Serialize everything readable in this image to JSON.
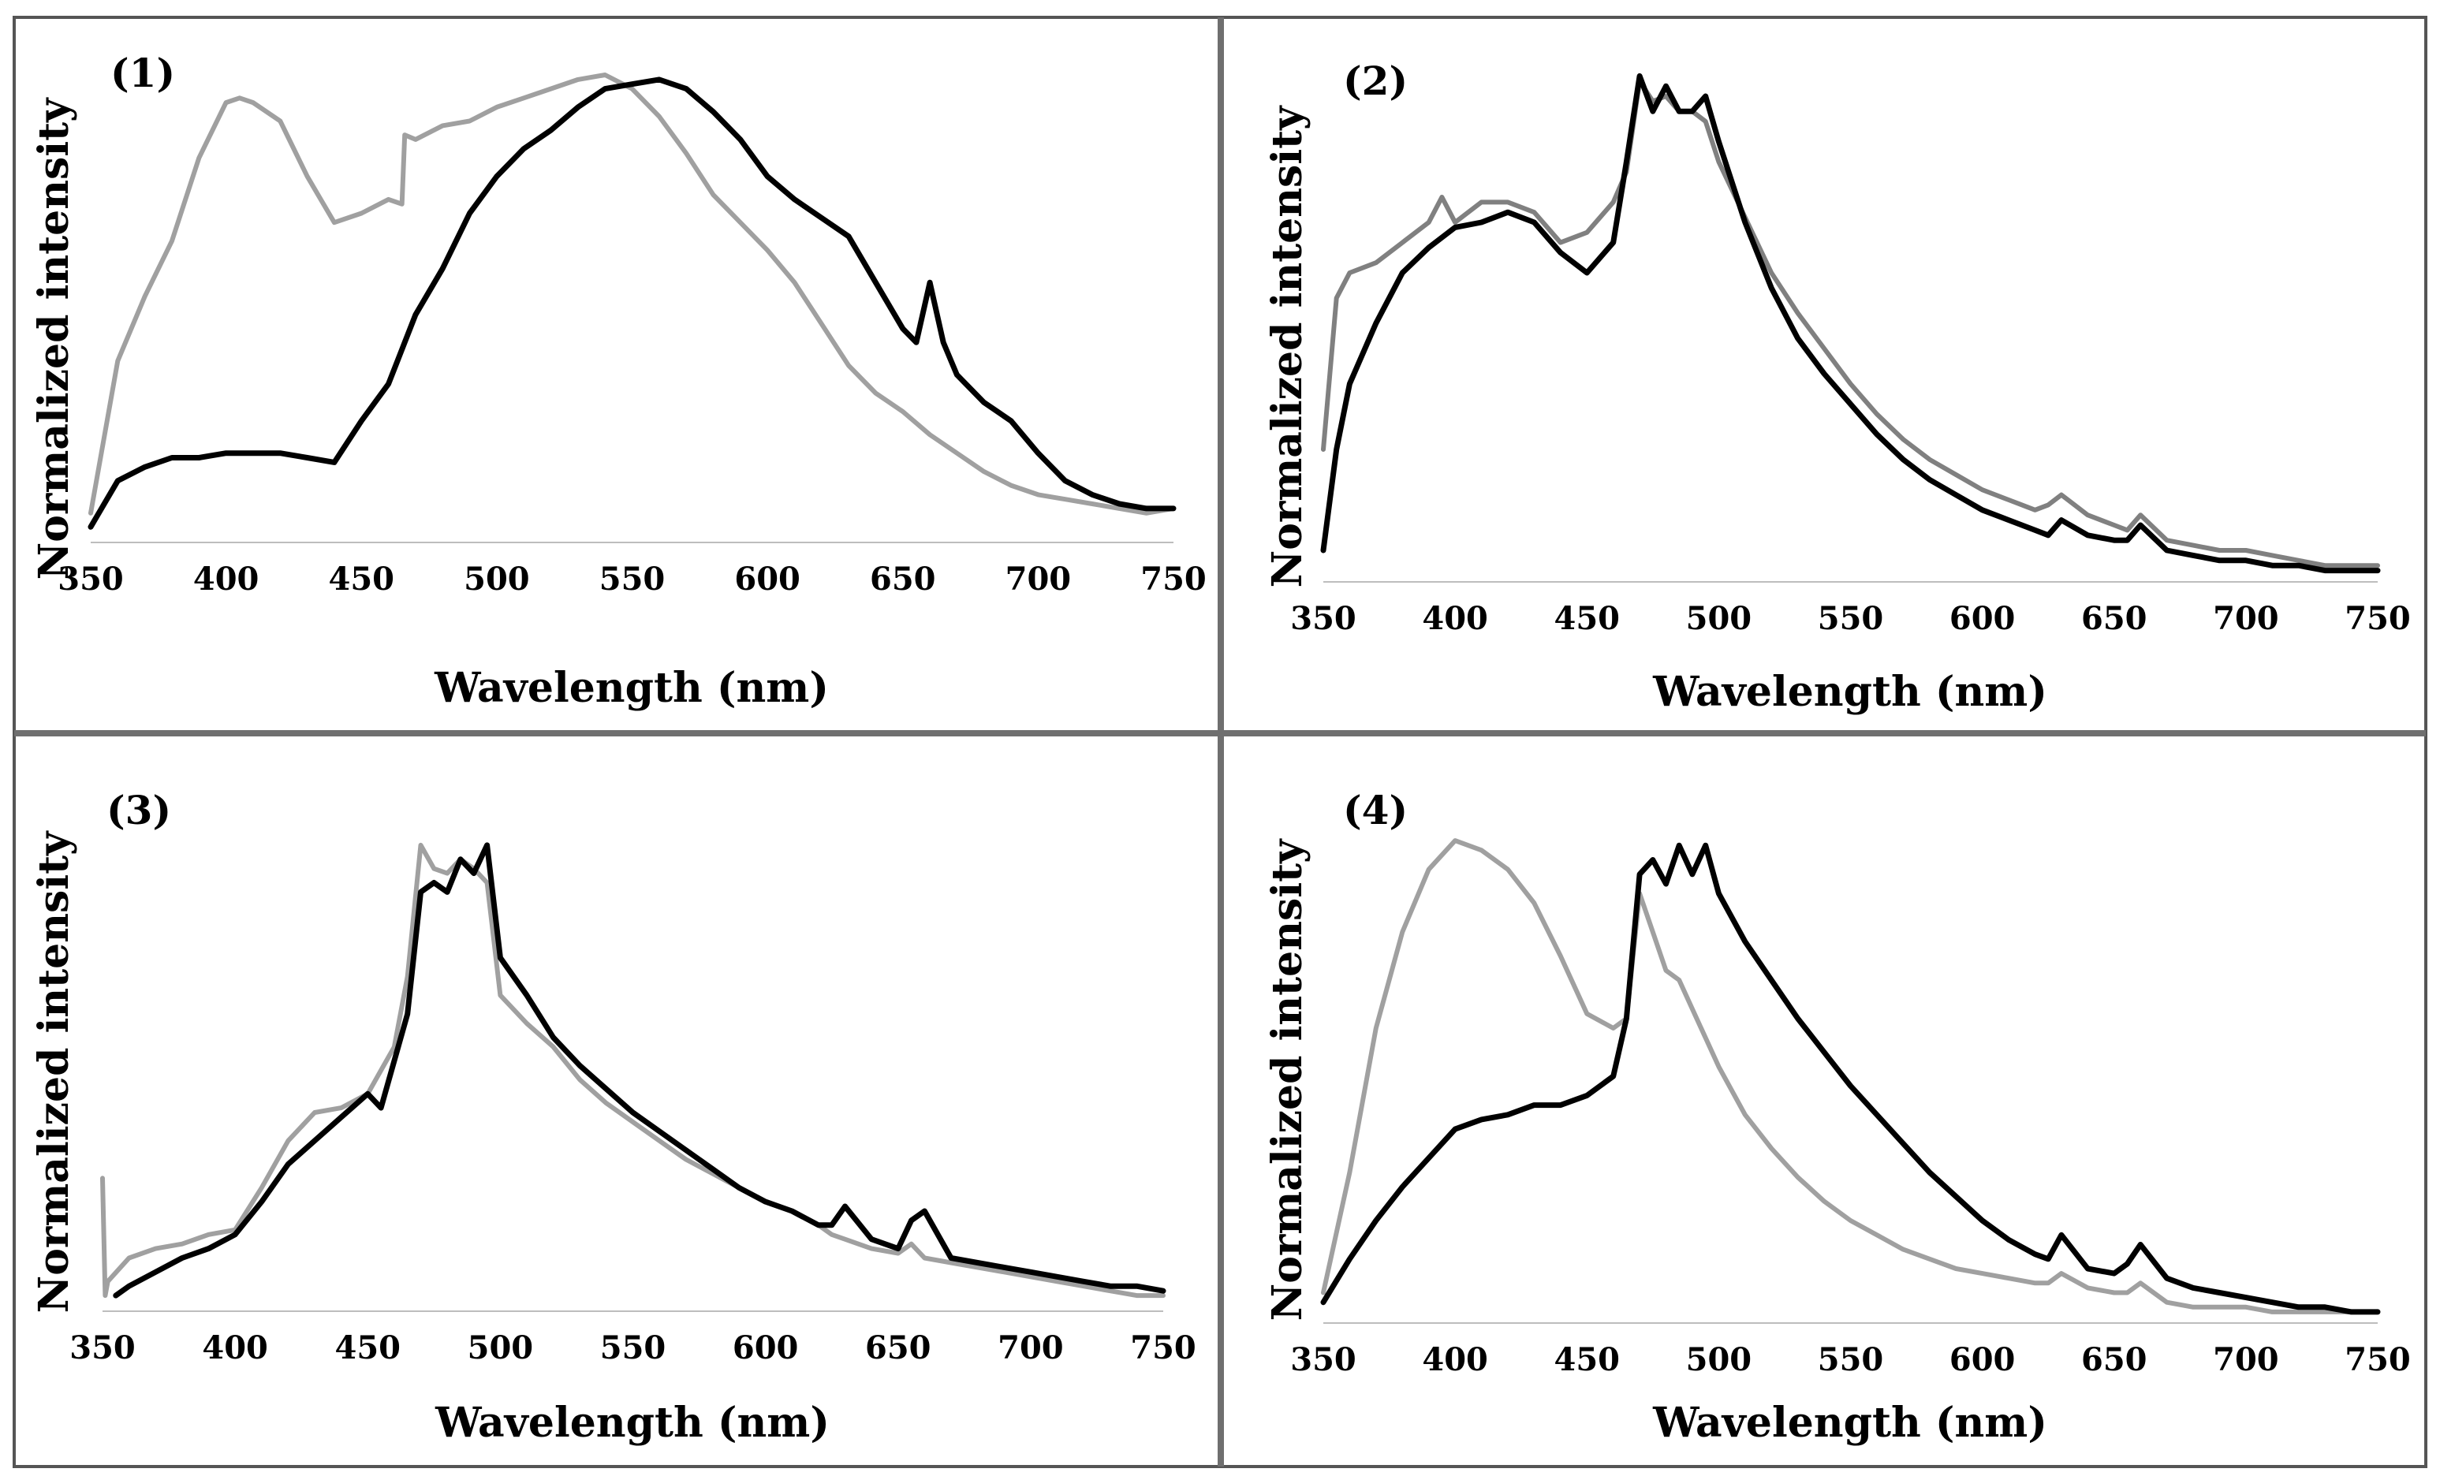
{
  "chart_data": [
    {
      "type": "line",
      "panel_label": "(1)",
      "xlabel": "Wavelength (nm)",
      "ylabel": "Normalized intensity",
      "xlim": [
        350,
        750
      ],
      "ylim": [
        0,
        1
      ],
      "xticks": [
        "350",
        "400",
        "450",
        "500",
        "550",
        "600",
        "650",
        "700",
        "750"
      ],
      "grid": false,
      "legend": "none",
      "series": [
        {
          "name": "gray",
          "color": "#a0a0a0",
          "x": [
            350,
            360,
            370,
            380,
            390,
            400,
            405,
            410,
            420,
            430,
            440,
            450,
            460,
            465,
            466,
            470,
            480,
            490,
            500,
            510,
            520,
            530,
            540,
            550,
            560,
            570,
            580,
            590,
            600,
            610,
            620,
            630,
            640,
            650,
            660,
            670,
            680,
            690,
            700,
            710,
            720,
            730,
            740,
            750
          ],
          "y": [
            0.05,
            0.38,
            0.52,
            0.64,
            0.82,
            0.94,
            0.95,
            0.94,
            0.9,
            0.78,
            0.68,
            0.7,
            0.73,
            0.72,
            0.87,
            0.86,
            0.89,
            0.9,
            0.93,
            0.95,
            0.97,
            0.99,
            1.0,
            0.97,
            0.91,
            0.83,
            0.74,
            0.68,
            0.62,
            0.55,
            0.46,
            0.37,
            0.31,
            0.27,
            0.22,
            0.18,
            0.14,
            0.11,
            0.09,
            0.08,
            0.07,
            0.06,
            0.05,
            0.06
          ]
        },
        {
          "name": "black",
          "color": "#000000",
          "x": [
            350,
            360,
            370,
            380,
            390,
            400,
            410,
            420,
            430,
            440,
            450,
            460,
            470,
            480,
            490,
            500,
            510,
            520,
            530,
            540,
            550,
            560,
            570,
            580,
            590,
            600,
            610,
            620,
            630,
            640,
            650,
            655,
            660,
            665,
            670,
            680,
            690,
            700,
            710,
            720,
            730,
            740,
            750
          ],
          "y": [
            0.02,
            0.12,
            0.15,
            0.17,
            0.17,
            0.18,
            0.18,
            0.18,
            0.17,
            0.16,
            0.25,
            0.33,
            0.48,
            0.58,
            0.7,
            0.78,
            0.84,
            0.88,
            0.93,
            0.97,
            0.98,
            0.99,
            0.97,
            0.92,
            0.86,
            0.78,
            0.73,
            0.69,
            0.65,
            0.55,
            0.45,
            0.42,
            0.55,
            0.42,
            0.35,
            0.29,
            0.25,
            0.18,
            0.12,
            0.09,
            0.07,
            0.06,
            0.06
          ]
        }
      ]
    },
    {
      "type": "line",
      "panel_label": "(2)",
      "xlabel": "Wavelength (nm)",
      "ylabel": "Normalized intensity",
      "xlim": [
        350,
        750
      ],
      "ylim": [
        0,
        1
      ],
      "xticks": [
        "350",
        "400",
        "450",
        "500",
        "550",
        "600",
        "650",
        "700",
        "750"
      ],
      "grid": false,
      "legend": "none",
      "series": [
        {
          "name": "gray",
          "color": "#808080",
          "x": [
            350,
            355,
            360,
            370,
            380,
            390,
            395,
            400,
            410,
            420,
            430,
            440,
            450,
            460,
            465,
            470,
            475,
            480,
            485,
            490,
            495,
            500,
            510,
            520,
            530,
            540,
            550,
            560,
            570,
            580,
            590,
            600,
            610,
            620,
            625,
            630,
            640,
            650,
            655,
            660,
            670,
            680,
            690,
            700,
            710,
            720,
            730,
            740,
            750
          ],
          "y": [
            0.25,
            0.55,
            0.6,
            0.62,
            0.66,
            0.7,
            0.75,
            0.7,
            0.74,
            0.74,
            0.72,
            0.66,
            0.68,
            0.74,
            0.8,
            0.98,
            0.94,
            0.95,
            0.92,
            0.92,
            0.9,
            0.82,
            0.71,
            0.6,
            0.52,
            0.45,
            0.38,
            0.32,
            0.27,
            0.23,
            0.2,
            0.17,
            0.15,
            0.13,
            0.14,
            0.16,
            0.12,
            0.1,
            0.09,
            0.12,
            0.07,
            0.06,
            0.05,
            0.05,
            0.04,
            0.03,
            0.02,
            0.02,
            0.02
          ]
        },
        {
          "name": "black",
          "color": "#000000",
          "x": [
            350,
            355,
            360,
            370,
            380,
            390,
            400,
            410,
            420,
            430,
            440,
            450,
            460,
            465,
            470,
            475,
            480,
            485,
            490,
            495,
            500,
            510,
            520,
            530,
            540,
            550,
            560,
            570,
            580,
            590,
            600,
            610,
            620,
            625,
            630,
            640,
            650,
            655,
            660,
            670,
            680,
            690,
            700,
            710,
            720,
            730,
            740,
            750
          ],
          "y": [
            0.05,
            0.25,
            0.38,
            0.5,
            0.6,
            0.65,
            0.69,
            0.7,
            0.72,
            0.7,
            0.64,
            0.6,
            0.66,
            0.82,
            0.99,
            0.92,
            0.97,
            0.92,
            0.92,
            0.95,
            0.86,
            0.7,
            0.57,
            0.47,
            0.4,
            0.34,
            0.28,
            0.23,
            0.19,
            0.16,
            0.13,
            0.11,
            0.09,
            0.08,
            0.11,
            0.08,
            0.07,
            0.07,
            0.1,
            0.05,
            0.04,
            0.03,
            0.03,
            0.02,
            0.02,
            0.01,
            0.01,
            0.01
          ]
        }
      ]
    },
    {
      "type": "line",
      "panel_label": "(3)",
      "xlabel": "Wavelength (nm)",
      "ylabel": "Normalized intensity",
      "xlim": [
        350,
        750
      ],
      "ylim": [
        0,
        1
      ],
      "xticks": [
        "350",
        "400",
        "450",
        "500",
        "550",
        "600",
        "650",
        "700",
        "750"
      ],
      "grid": false,
      "legend": "none",
      "series": [
        {
          "name": "gray",
          "color": "#a0a0a0",
          "x": [
            350,
            351,
            352,
            360,
            370,
            380,
            390,
            400,
            410,
            420,
            425,
            430,
            440,
            450,
            455,
            460,
            465,
            470,
            475,
            480,
            485,
            490,
            495,
            500,
            510,
            520,
            530,
            540,
            550,
            560,
            570,
            580,
            590,
            600,
            610,
            620,
            625,
            630,
            640,
            650,
            655,
            660,
            670,
            680,
            690,
            700,
            710,
            720,
            730,
            740,
            750
          ],
          "y": [
            0.27,
            0.02,
            0.05,
            0.1,
            0.12,
            0.13,
            0.15,
            0.16,
            0.25,
            0.35,
            0.38,
            0.41,
            0.42,
            0.45,
            0.5,
            0.55,
            0.7,
            0.98,
            0.93,
            0.92,
            0.95,
            0.93,
            0.9,
            0.66,
            0.6,
            0.55,
            0.48,
            0.43,
            0.39,
            0.35,
            0.31,
            0.28,
            0.25,
            0.22,
            0.2,
            0.17,
            0.15,
            0.14,
            0.12,
            0.11,
            0.13,
            0.1,
            0.09,
            0.08,
            0.07,
            0.06,
            0.05,
            0.04,
            0.03,
            0.02,
            0.02
          ]
        },
        {
          "name": "black",
          "color": "#000000",
          "x": [
            355,
            360,
            370,
            380,
            390,
            400,
            410,
            420,
            430,
            440,
            450,
            455,
            460,
            465,
            470,
            475,
            480,
            485,
            490,
            495,
            500,
            510,
            520,
            530,
            540,
            550,
            560,
            570,
            580,
            590,
            600,
            610,
            620,
            625,
            630,
            640,
            650,
            655,
            660,
            670,
            680,
            690,
            700,
            710,
            720,
            730,
            740,
            750
          ],
          "y": [
            0.02,
            0.04,
            0.07,
            0.1,
            0.12,
            0.15,
            0.22,
            0.3,
            0.35,
            0.4,
            0.45,
            0.42,
            0.52,
            0.62,
            0.88,
            0.9,
            0.88,
            0.95,
            0.92,
            0.98,
            0.74,
            0.66,
            0.57,
            0.51,
            0.46,
            0.41,
            0.37,
            0.33,
            0.29,
            0.25,
            0.22,
            0.2,
            0.17,
            0.17,
            0.21,
            0.14,
            0.12,
            0.18,
            0.2,
            0.1,
            0.09,
            0.08,
            0.07,
            0.06,
            0.05,
            0.04,
            0.04,
            0.03
          ]
        }
      ]
    },
    {
      "type": "line",
      "panel_label": "(4)",
      "xlabel": "Wavelength (nm)",
      "ylabel": "Normalized intensity",
      "xlim": [
        350,
        750
      ],
      "ylim": [
        0,
        1
      ],
      "xticks": [
        "350",
        "400",
        "450",
        "500",
        "550",
        "600",
        "650",
        "700",
        "750"
      ],
      "grid": false,
      "legend": "none",
      "series": [
        {
          "name": "gray",
          "color": "#a0a0a0",
          "x": [
            350,
            360,
            370,
            380,
            390,
            400,
            410,
            420,
            430,
            440,
            450,
            460,
            465,
            470,
            475,
            480,
            485,
            490,
            500,
            510,
            520,
            530,
            540,
            550,
            560,
            570,
            580,
            590,
            600,
            610,
            620,
            625,
            630,
            640,
            650,
            655,
            660,
            670,
            680,
            690,
            700,
            710,
            720,
            730,
            740,
            750
          ],
          "y": [
            0.05,
            0.3,
            0.6,
            0.8,
            0.93,
            0.99,
            0.97,
            0.93,
            0.86,
            0.75,
            0.63,
            0.6,
            0.62,
            0.88,
            0.8,
            0.72,
            0.7,
            0.64,
            0.52,
            0.42,
            0.35,
            0.29,
            0.24,
            0.2,
            0.17,
            0.14,
            0.12,
            0.1,
            0.09,
            0.08,
            0.07,
            0.07,
            0.09,
            0.06,
            0.05,
            0.05,
            0.07,
            0.03,
            0.02,
            0.02,
            0.02,
            0.01,
            0.01,
            0.01,
            0.01,
            0.01
          ]
        },
        {
          "name": "black",
          "color": "#000000",
          "x": [
            350,
            360,
            370,
            380,
            390,
            400,
            410,
            420,
            430,
            440,
            450,
            460,
            465,
            470,
            475,
            480,
            485,
            490,
            495,
            500,
            510,
            520,
            530,
            540,
            550,
            560,
            570,
            580,
            590,
            600,
            610,
            620,
            625,
            630,
            640,
            650,
            655,
            660,
            670,
            680,
            690,
            700,
            710,
            720,
            730,
            740,
            750
          ],
          "y": [
            0.03,
            0.12,
            0.2,
            0.27,
            0.33,
            0.39,
            0.41,
            0.42,
            0.44,
            0.44,
            0.46,
            0.5,
            0.62,
            0.92,
            0.95,
            0.9,
            0.98,
            0.92,
            0.98,
            0.88,
            0.78,
            0.7,
            0.62,
            0.55,
            0.48,
            0.42,
            0.36,
            0.3,
            0.25,
            0.2,
            0.16,
            0.13,
            0.12,
            0.17,
            0.1,
            0.09,
            0.11,
            0.15,
            0.08,
            0.06,
            0.05,
            0.04,
            0.03,
            0.02,
            0.02,
            0.01,
            0.01
          ]
        }
      ]
    }
  ]
}
